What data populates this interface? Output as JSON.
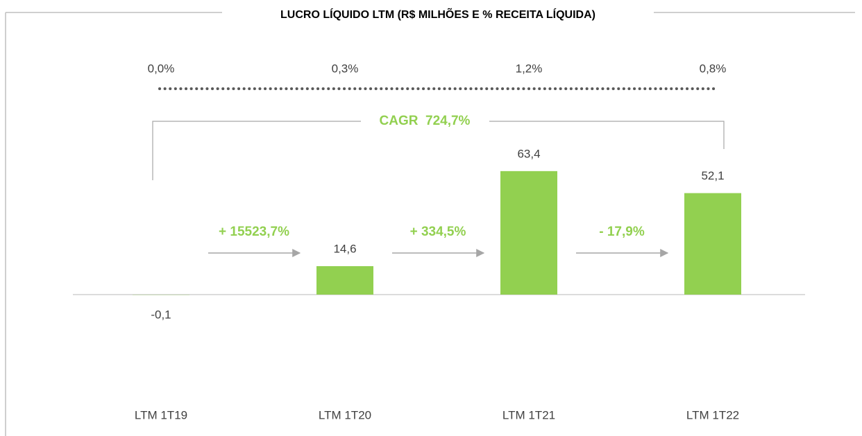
{
  "chart_data": {
    "type": "bar",
    "title": "LUCRO LÍQUIDO LTM (R$ MILHÕES E % RECEITA LÍQUIDA)",
    "categories": [
      "LTM 1T19",
      "LTM 1T20",
      "LTM 1T21",
      "LTM 1T22"
    ],
    "values": [
      -0.1,
      14.6,
      63.4,
      52.1
    ],
    "value_labels": [
      "-0,1",
      "14,6",
      "63,4",
      "52,1"
    ],
    "color": "#92d050",
    "ylim": [
      -20,
      80
    ],
    "margin_labels": [
      "0,0%",
      "0,3%",
      "1,2%",
      "0,8%"
    ],
    "growth_labels": [
      "+ 15523,7%",
      "+ 334,5%",
      "- 17,9%"
    ],
    "cagr_label": "CAGR  724,7%"
  }
}
